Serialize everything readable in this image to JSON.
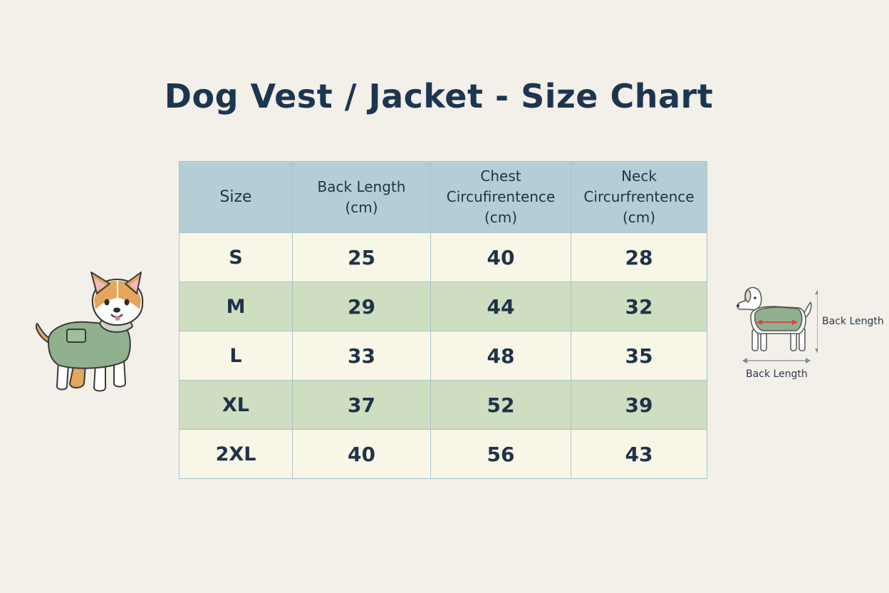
{
  "title": "Dog Vest / Jacket - Size Chart",
  "chart_data": {
    "type": "table",
    "title": "Dog Vest / Jacket - Size Chart",
    "columns": [
      "Size",
      "Back Length\n(cm)",
      "Chest\nCircufirentence\n(cm)",
      "Neck\nCircurfrentence\n(cm)"
    ],
    "rows": [
      [
        "S",
        25,
        40,
        28
      ],
      [
        "M",
        29,
        44,
        32
      ],
      [
        "L",
        33,
        48,
        35
      ],
      [
        "XL",
        37,
        52,
        39
      ],
      [
        "2XL",
        40,
        56,
        43
      ]
    ]
  },
  "diagram": {
    "side_label": "Back Length",
    "bottom_label": "Back Length"
  },
  "colors": {
    "header_bg": "#b5ced6",
    "row_light": "#f8f6e7",
    "row_green": "#cfddc1",
    "vest_green": "#8fb18d",
    "arrow_red": "#d04a4a"
  },
  "icons": {
    "left": "corgi-in-vest-icon",
    "right": "dog-measurement-icon"
  }
}
